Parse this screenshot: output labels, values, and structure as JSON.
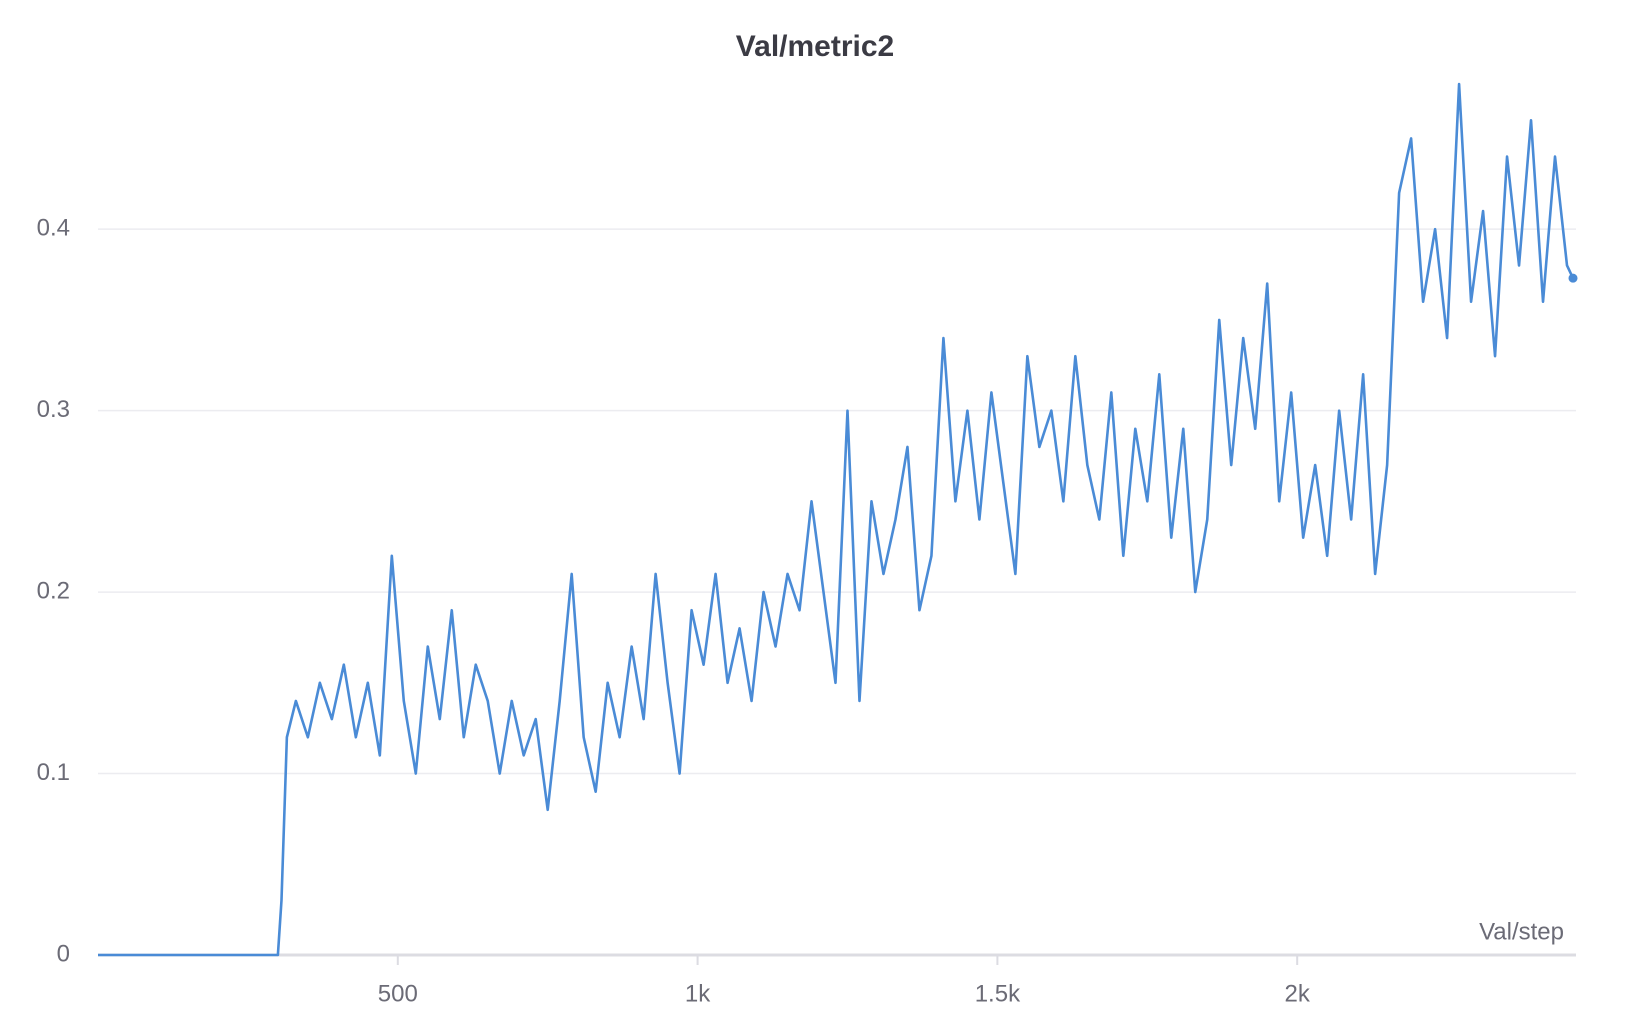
{
  "chart_data": {
    "type": "line",
    "title": "Val/metric2",
    "x_label": "Val/step",
    "xlim": [
      0,
      2465
    ],
    "ylim": [
      0,
      0.48
    ],
    "xticks": [
      500,
      {
        "value": 1000,
        "label": "1k"
      },
      {
        "value": 1500,
        "label": "1.5k"
      },
      {
        "value": 2000,
        "label": "2k"
      }
    ],
    "yticks": [
      0,
      0.1,
      0.2,
      0.3,
      0.4
    ],
    "grid": true,
    "series": [
      {
        "name": "Val/metric2",
        "color": "#4a8bd6",
        "x": [
          0,
          300,
          306,
          315,
          330,
          350,
          370,
          390,
          410,
          430,
          450,
          470,
          490,
          510,
          530,
          550,
          570,
          590,
          610,
          630,
          650,
          670,
          690,
          710,
          730,
          750,
          770,
          790,
          810,
          830,
          850,
          870,
          890,
          910,
          930,
          950,
          970,
          990,
          1010,
          1030,
          1050,
          1070,
          1090,
          1110,
          1130,
          1150,
          1170,
          1190,
          1210,
          1230,
          1250,
          1270,
          1290,
          1310,
          1330,
          1350,
          1370,
          1390,
          1410,
          1430,
          1450,
          1470,
          1490,
          1510,
          1530,
          1550,
          1570,
          1590,
          1610,
          1630,
          1650,
          1670,
          1690,
          1710,
          1730,
          1750,
          1770,
          1790,
          1810,
          1830,
          1850,
          1870,
          1890,
          1910,
          1930,
          1950,
          1970,
          1990,
          2010,
          2030,
          2050,
          2070,
          2090,
          2110,
          2130,
          2150,
          2170,
          2190,
          2210,
          2230,
          2250,
          2270,
          2290,
          2310,
          2330,
          2350,
          2370,
          2390,
          2410,
          2430,
          2450,
          2460
        ],
        "values": [
          0,
          0,
          0.03,
          0.12,
          0.14,
          0.12,
          0.15,
          0.13,
          0.16,
          0.12,
          0.15,
          0.11,
          0.22,
          0.14,
          0.1,
          0.17,
          0.13,
          0.19,
          0.12,
          0.16,
          0.14,
          0.1,
          0.14,
          0.11,
          0.13,
          0.08,
          0.14,
          0.21,
          0.12,
          0.09,
          0.15,
          0.12,
          0.17,
          0.13,
          0.21,
          0.15,
          0.1,
          0.19,
          0.16,
          0.21,
          0.15,
          0.18,
          0.14,
          0.2,
          0.17,
          0.21,
          0.19,
          0.25,
          0.2,
          0.15,
          0.3,
          0.14,
          0.25,
          0.21,
          0.24,
          0.28,
          0.19,
          0.22,
          0.34,
          0.25,
          0.3,
          0.24,
          0.31,
          0.26,
          0.21,
          0.33,
          0.28,
          0.3,
          0.25,
          0.33,
          0.27,
          0.24,
          0.31,
          0.22,
          0.29,
          0.25,
          0.32,
          0.23,
          0.29,
          0.2,
          0.24,
          0.35,
          0.27,
          0.34,
          0.29,
          0.37,
          0.25,
          0.31,
          0.23,
          0.27,
          0.22,
          0.3,
          0.24,
          0.32,
          0.21,
          0.27,
          0.42,
          0.45,
          0.36,
          0.4,
          0.34,
          0.48,
          0.36,
          0.41,
          0.33,
          0.44,
          0.38,
          0.46,
          0.36,
          0.44,
          0.38,
          0.373
        ]
      }
    ]
  }
}
